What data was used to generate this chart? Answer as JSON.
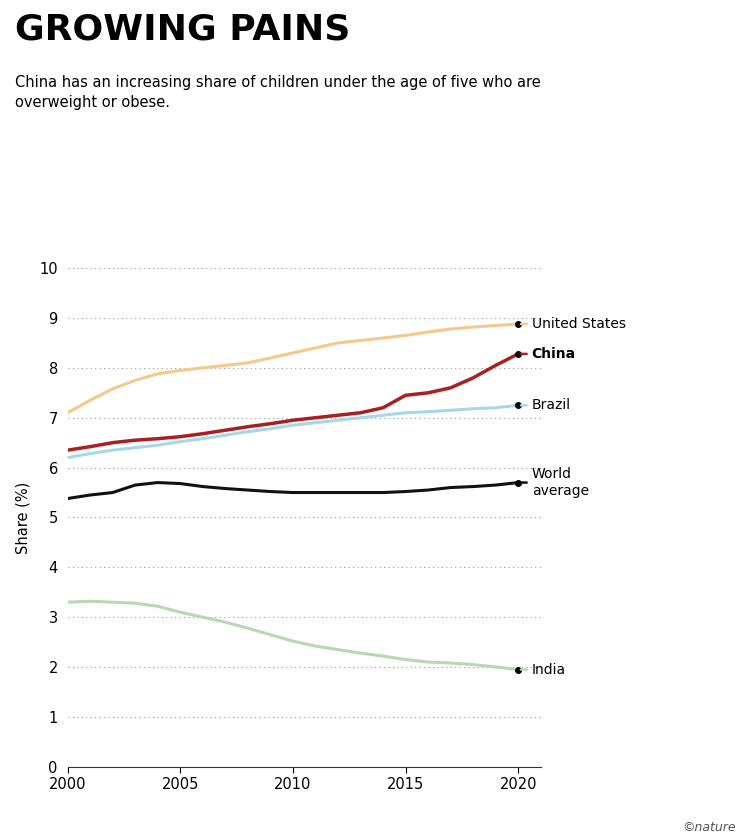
{
  "title": "GROWING PAINS",
  "subtitle": "China has an increasing share of children under the age of five who are\noverweight or obese.",
  "ylabel": "Share (%)",
  "ylim": [
    0,
    10
  ],
  "yticks": [
    0,
    1,
    2,
    3,
    4,
    5,
    6,
    7,
    8,
    9,
    10
  ],
  "xlim": [
    2000,
    2021
  ],
  "xticks": [
    2000,
    2005,
    2010,
    2015,
    2020
  ],
  "copyright": "©nature",
  "series": {
    "United States": {
      "color": "#f5c98a",
      "linewidth": 2.2,
      "bold_label": false,
      "x": [
        2000,
        2001,
        2002,
        2003,
        2004,
        2005,
        2006,
        2007,
        2008,
        2009,
        2010,
        2011,
        2012,
        2013,
        2014,
        2015,
        2016,
        2017,
        2018,
        2019,
        2020
      ],
      "y": [
        7.1,
        7.35,
        7.58,
        7.75,
        7.88,
        7.95,
        8.0,
        8.05,
        8.1,
        8.2,
        8.3,
        8.4,
        8.5,
        8.55,
        8.6,
        8.65,
        8.72,
        8.78,
        8.82,
        8.85,
        8.88
      ]
    },
    "China": {
      "color": "#aa2020",
      "linewidth": 2.5,
      "bold_label": true,
      "x": [
        2000,
        2001,
        2002,
        2003,
        2004,
        2005,
        2006,
        2007,
        2008,
        2009,
        2010,
        2011,
        2012,
        2013,
        2014,
        2015,
        2016,
        2017,
        2018,
        2019,
        2020
      ],
      "y": [
        6.35,
        6.42,
        6.5,
        6.55,
        6.58,
        6.62,
        6.68,
        6.75,
        6.82,
        6.88,
        6.95,
        7.0,
        7.05,
        7.1,
        7.2,
        7.45,
        7.5,
        7.6,
        7.8,
        8.05,
        8.28
      ]
    },
    "Brazil": {
      "color": "#a8d8e8",
      "linewidth": 2.2,
      "bold_label": false,
      "x": [
        2000,
        2001,
        2002,
        2003,
        2004,
        2005,
        2006,
        2007,
        2008,
        2009,
        2010,
        2011,
        2012,
        2013,
        2014,
        2015,
        2016,
        2017,
        2018,
        2019,
        2020
      ],
      "y": [
        6.2,
        6.28,
        6.35,
        6.4,
        6.45,
        6.52,
        6.58,
        6.65,
        6.72,
        6.78,
        6.85,
        6.9,
        6.95,
        7.0,
        7.05,
        7.1,
        7.12,
        7.15,
        7.18,
        7.2,
        7.25
      ]
    },
    "World average": {
      "color": "#111111",
      "linewidth": 2.2,
      "bold_label": false,
      "x": [
        2000,
        2001,
        2002,
        2003,
        2004,
        2005,
        2006,
        2007,
        2008,
        2009,
        2010,
        2011,
        2012,
        2013,
        2014,
        2015,
        2016,
        2017,
        2018,
        2019,
        2020
      ],
      "y": [
        5.38,
        5.45,
        5.5,
        5.65,
        5.7,
        5.68,
        5.62,
        5.58,
        5.55,
        5.52,
        5.5,
        5.5,
        5.5,
        5.5,
        5.5,
        5.52,
        5.55,
        5.6,
        5.62,
        5.65,
        5.7
      ]
    },
    "India": {
      "color": "#b8d8b0",
      "linewidth": 2.2,
      "bold_label": false,
      "x": [
        2000,
        2001,
        2002,
        2003,
        2004,
        2005,
        2006,
        2007,
        2008,
        2009,
        2010,
        2011,
        2012,
        2013,
        2014,
        2015,
        2016,
        2017,
        2018,
        2019,
        2020
      ],
      "y": [
        3.3,
        3.32,
        3.3,
        3.28,
        3.22,
        3.1,
        3.0,
        2.9,
        2.78,
        2.65,
        2.52,
        2.42,
        2.35,
        2.28,
        2.22,
        2.15,
        2.1,
        2.08,
        2.05,
        2.0,
        1.95
      ]
    }
  },
  "labels": [
    {
      "text": "United States",
      "series": "United States",
      "bold": false,
      "yval": 8.88
    },
    {
      "text": "China",
      "series": "China",
      "bold": true,
      "yval": 8.28
    },
    {
      "text": "Brazil",
      "series": "Brazil",
      "bold": false,
      "yval": 7.25
    },
    {
      "text": "World\naverage",
      "series": "World average",
      "bold": false,
      "yval": 5.7
    },
    {
      "text": "India",
      "series": "India",
      "bold": false,
      "yval": 1.95
    }
  ]
}
